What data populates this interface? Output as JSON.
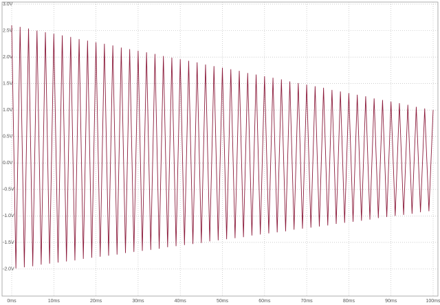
{
  "chart_data": {
    "type": "line",
    "x": [
      0,
      1,
      2,
      3,
      4,
      5,
      6,
      7,
      8,
      9,
      10,
      11,
      12,
      13,
      14,
      15,
      16,
      17,
      18,
      19,
      20,
      21,
      22,
      23,
      24,
      25,
      26,
      27,
      28,
      29,
      30,
      31,
      32,
      33,
      34,
      35,
      36,
      37,
      38,
      39,
      40,
      41,
      42,
      43,
      44,
      45,
      46,
      47,
      48,
      49,
      50,
      51,
      52,
      53,
      54,
      55,
      56,
      57,
      58,
      59,
      60,
      61,
      62,
      63,
      64,
      65,
      66,
      67,
      68,
      69,
      70,
      71,
      72,
      73,
      74,
      75,
      76,
      77,
      78,
      79,
      80,
      81,
      82,
      83,
      84,
      85,
      86,
      87,
      88,
      89,
      90,
      91,
      92,
      93,
      94,
      95,
      96,
      97,
      98,
      99,
      100
    ],
    "series": [
      {
        "color": "#8b1a3a",
        "values": [
          2.6,
          -1.99,
          2.57,
          -1.97,
          2.54,
          -1.95,
          2.5,
          -1.92,
          2.47,
          -1.9,
          2.44,
          -1.88,
          2.41,
          -1.86,
          2.38,
          -1.84,
          2.34,
          -1.81,
          2.31,
          -1.79,
          2.28,
          -1.77,
          2.25,
          -1.75,
          2.22,
          -1.73,
          2.18,
          -1.7,
          2.15,
          -1.68,
          2.12,
          -1.66,
          2.09,
          -1.64,
          2.06,
          -1.62,
          2.02,
          -1.59,
          1.99,
          -1.57,
          1.96,
          -1.55,
          1.93,
          -1.53,
          1.9,
          -1.51,
          1.86,
          -1.48,
          1.83,
          -1.46,
          1.8,
          -1.44,
          1.77,
          -1.42,
          1.74,
          -1.4,
          1.7,
          -1.37,
          1.67,
          -1.35,
          1.64,
          -1.33,
          1.61,
          -1.31,
          1.58,
          -1.29,
          1.54,
          -1.26,
          1.51,
          -1.24,
          1.48,
          -1.22,
          1.45,
          -1.2,
          1.42,
          -1.18,
          1.38,
          -1.15,
          1.35,
          -1.13,
          1.32,
          -1.11,
          1.29,
          -1.09,
          1.26,
          -1.07,
          1.22,
          -1.04,
          1.19,
          -1.02,
          1.16,
          -1.0,
          1.13,
          -0.98,
          1.1,
          -0.96,
          1.06,
          -0.93,
          1.03,
          -0.91,
          1.0
        ]
      }
    ],
    "xlim": [
      0,
      100
    ],
    "xticks": [
      {
        "value": 0,
        "label": "0ms"
      },
      {
        "value": 10,
        "label": "10ms"
      },
      {
        "value": 20,
        "label": "20ms"
      },
      {
        "value": 30,
        "label": "30ms"
      },
      {
        "value": 40,
        "label": "40ms"
      },
      {
        "value": 50,
        "label": "50ms"
      },
      {
        "value": 60,
        "label": "60ms"
      },
      {
        "value": 70,
        "label": "70ms"
      },
      {
        "value": 80,
        "label": "80ms"
      },
      {
        "value": 90,
        "label": "90ms"
      },
      {
        "value": 100,
        "label": "100ms"
      }
    ],
    "ylim": [
      -2.5,
      3.0
    ],
    "yticks": [
      {
        "value": -2.0,
        "label": "-2.0V"
      },
      {
        "value": -1.5,
        "label": "-1.5V"
      },
      {
        "value": -1.0,
        "label": "-1.0V"
      },
      {
        "value": -0.5,
        "label": "-0.5V"
      },
      {
        "value": 0,
        "label": "0.0V"
      },
      {
        "value": 0.5,
        "label": "0.5V"
      },
      {
        "value": 1.0,
        "label": "1.0V"
      },
      {
        "value": 1.5,
        "label": "1.5V"
      },
      {
        "value": 2.0,
        "label": "2.0V"
      },
      {
        "value": 2.5,
        "label": "2.5V"
      },
      {
        "value": 3.0,
        "label": "3.0V"
      }
    ],
    "grid": true
  }
}
